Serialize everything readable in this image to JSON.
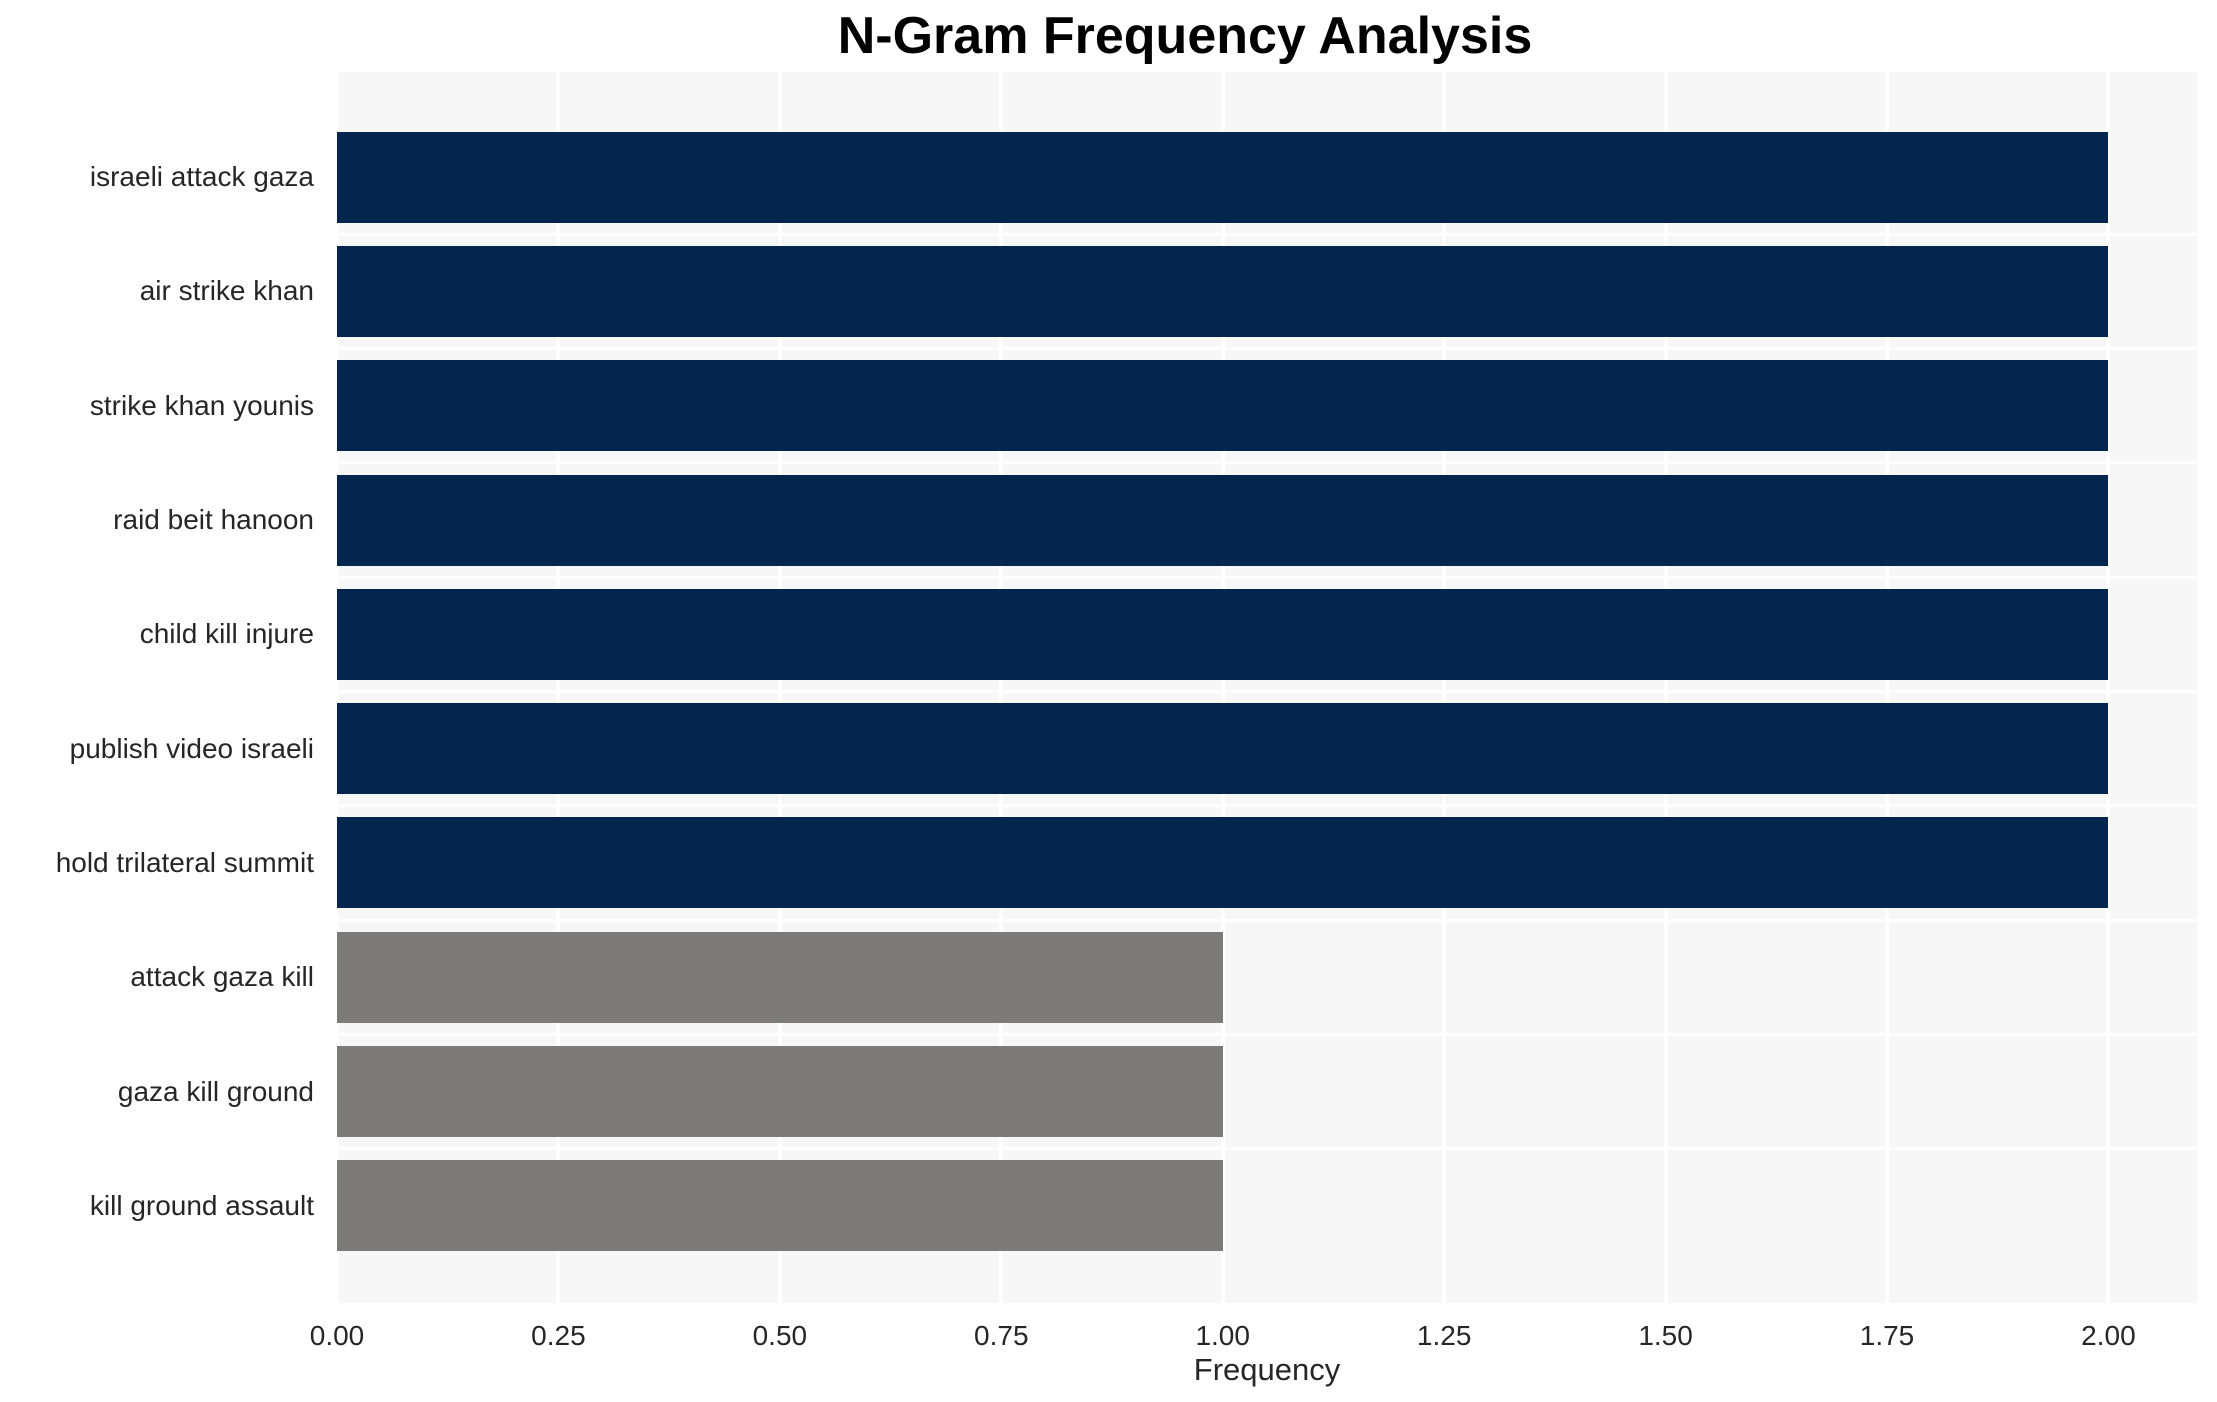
{
  "chart_data": {
    "type": "bar",
    "orientation": "horizontal",
    "title": "N-Gram Frequency Analysis",
    "xlabel": "Frequency",
    "ylabel": "",
    "categories": [
      "israeli attack gaza",
      "air strike khan",
      "strike khan younis",
      "raid beit hanoon",
      "child kill injure",
      "publish video israeli",
      "hold trilateral summit",
      "attack gaza kill",
      "gaza kill ground",
      "kill ground assault"
    ],
    "values": [
      2,
      2,
      2,
      2,
      2,
      2,
      2,
      1,
      1,
      1
    ],
    "bar_colors": [
      "#04254e",
      "#04254e",
      "#04254e",
      "#04254e",
      "#04254e",
      "#04254e",
      "#04254e",
      "#7c7b77",
      "#7c7b77",
      "#7c7b77"
    ],
    "xlim": [
      0,
      2.1
    ],
    "xticks": [
      {
        "value": 0.0,
        "label": "0.00"
      },
      {
        "value": 0.25,
        "label": "0.25"
      },
      {
        "value": 0.5,
        "label": "0.50"
      },
      {
        "value": 0.75,
        "label": "0.75"
      },
      {
        "value": 1.0,
        "label": "1.00"
      },
      {
        "value": 1.25,
        "label": "1.25"
      },
      {
        "value": 1.5,
        "label": "1.50"
      },
      {
        "value": 1.75,
        "label": "1.75"
      },
      {
        "value": 2.0,
        "label": "2.00"
      }
    ],
    "legend": null,
    "grid": "major-vertical-white, minor-horizontal-white",
    "styles": {
      "bar_high_color": "#04254e",
      "bar_low_color": "#7c7b77",
      "plot_background": "#f7f7f7",
      "grid_color": "#ffffff",
      "text_color": "#262626",
      "title_color": "#000000",
      "figure_background": "#ffffff"
    }
  }
}
